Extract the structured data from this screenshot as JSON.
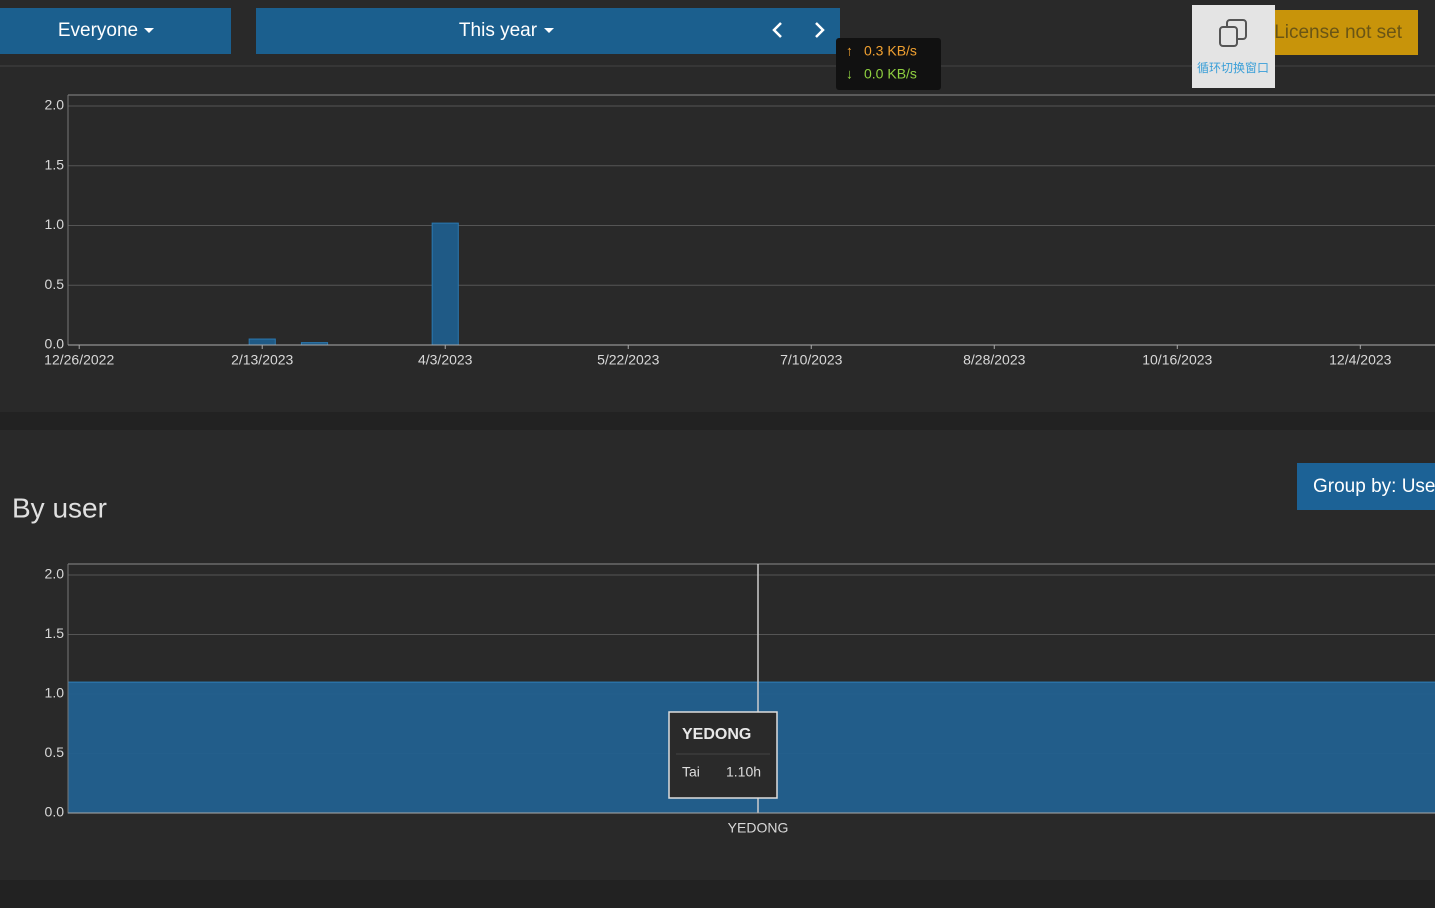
{
  "toolbar": {
    "user_filter": "Everyone",
    "period": "This year",
    "upload_speed": "0.3 KB/s",
    "download_speed": "0.0 KB/s",
    "switch_window": "循环切换窗口",
    "license": "License not set"
  },
  "section": {
    "title": "By user",
    "group_by": "Group by: Use"
  },
  "chart_data": [
    {
      "type": "bar",
      "x": [
        "2/13/2023",
        "2/27/2023",
        "4/3/2023"
      ],
      "values": [
        0.05,
        0.02,
        1.02
      ],
      "color": "#1f5a86",
      "xlim": [
        "12/23/2022",
        "12/24/2023"
      ],
      "xticks": [
        "12/26/2022",
        "2/13/2023",
        "4/3/2023",
        "5/22/2023",
        "7/10/2023",
        "8/28/2023",
        "10/16/2023",
        "12/4/2023"
      ],
      "ylim": [
        0,
        2
      ],
      "yticks": [
        {
          "value": 0,
          "label": "0.0"
        },
        0.5,
        {
          "value": 1,
          "label": "1.0"
        },
        1.5,
        {
          "value": 2,
          "label": "2.0"
        }
      ],
      "grid": true
    },
    {
      "type": "bar",
      "categories": [
        "YEDONG"
      ],
      "series": [
        {
          "name": "Tai",
          "color": "#22608f",
          "values": [
            1.1
          ],
          "value_labels": [
            "1.10h"
          ]
        }
      ],
      "ylim": [
        0,
        2
      ],
      "yticks": [
        {
          "value": 0,
          "label": "0.0"
        },
        0.5,
        {
          "value": 1,
          "label": "1.0"
        },
        1.5,
        {
          "value": 2,
          "label": "2.0"
        }
      ],
      "grid": true
    }
  ]
}
